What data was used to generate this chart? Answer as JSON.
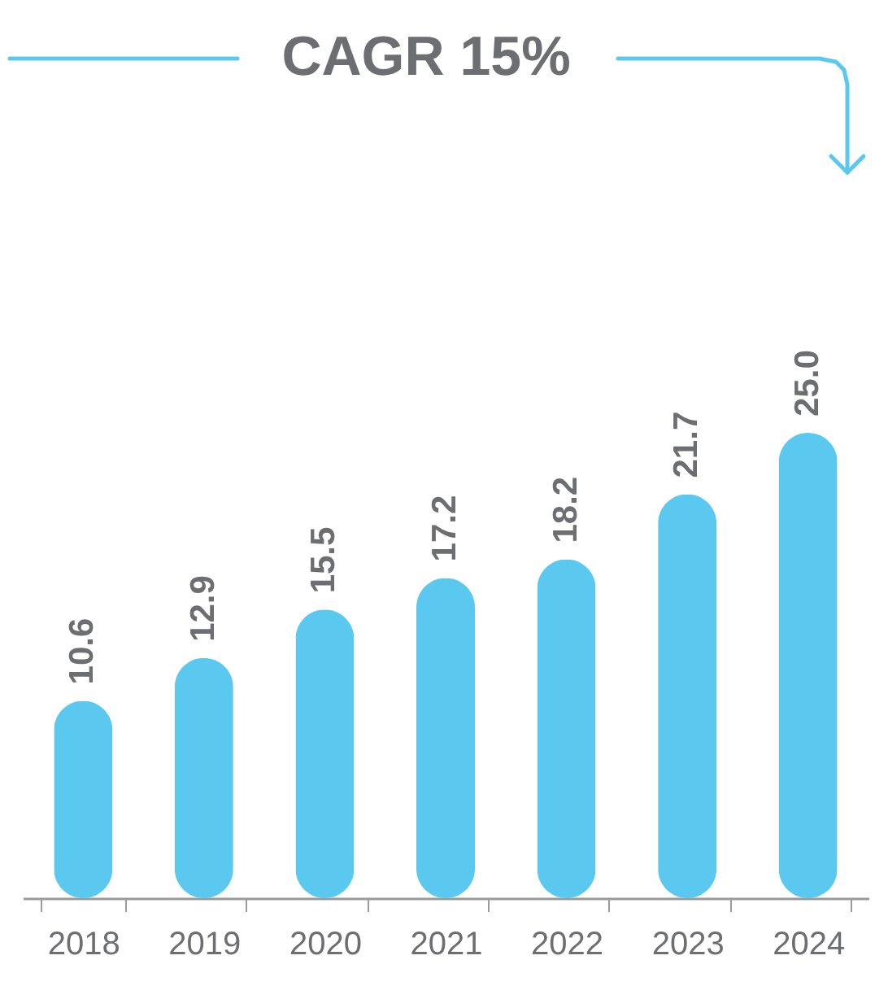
{
  "chart_data": {
    "type": "bar",
    "categories": [
      "2018",
      "2019",
      "2020",
      "2021",
      "2022",
      "2023",
      "2024"
    ],
    "values": [
      10.6,
      12.9,
      15.5,
      17.2,
      18.2,
      21.7,
      25.0
    ],
    "value_labels": [
      "10.6",
      "12.9",
      "15.5",
      "17.2",
      "18.2",
      "21.7",
      "25.0"
    ],
    "color": "#5bc8f0",
    "annotations": [
      "CAGR 15%"
    ],
    "grid": false
  }
}
